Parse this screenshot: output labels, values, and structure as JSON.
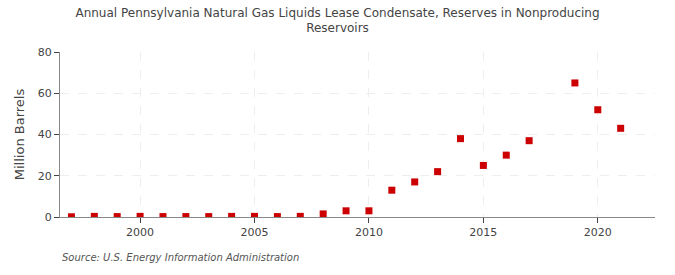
{
  "chart_data": {
    "type": "scatter",
    "title": "Annual Pennsylvania Natural Gas Liquids Lease Condensate, Reserves in Nonproducing\nReservoirs",
    "ylabel": "Million Barrels",
    "annotations": [
      "Source: U.S. Energy Information Administration"
    ],
    "x": [
      1997,
      1998,
      1999,
      2000,
      2001,
      2002,
      2003,
      2004,
      2005,
      2006,
      2007,
      2008,
      2009,
      2010,
      2011,
      2012,
      2013,
      2014,
      2015,
      2016,
      2017,
      2019,
      2020,
      2021
    ],
    "values": [
      0.1,
      0.3,
      0.2,
      0.3,
      0.2,
      0.2,
      0.2,
      0.3,
      0.3,
      0.2,
      0.3,
      1.5,
      3.0,
      3.0,
      13.0,
      17.0,
      22.0,
      38.0,
      25.0,
      30.0,
      37.0,
      65.0,
      52.0,
      43.0
    ],
    "color": "#cc0000",
    "marker": "square",
    "xlim": [
      1996.5,
      2022.5
    ],
    "xticks": [
      2000,
      2005,
      2010,
      2015,
      2020
    ],
    "ylim": [
      0,
      80
    ],
    "yticks": [
      0,
      20,
      40,
      60,
      80
    ],
    "grid": true
  }
}
